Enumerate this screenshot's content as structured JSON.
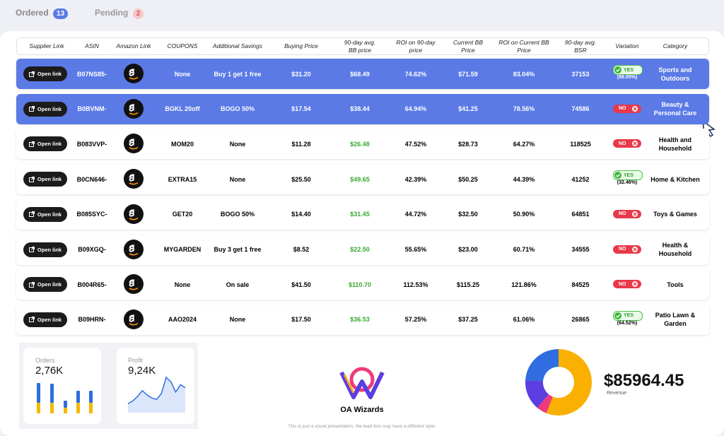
{
  "tabs": [
    {
      "label": "Ordered",
      "count": "13"
    },
    {
      "label": "Pending",
      "count": "2"
    }
  ],
  "table": {
    "link_label": "Open link",
    "headers": [
      "Supplier Link",
      "ASIN",
      "Amazon Link",
      "COUPONS",
      "Additional Savings",
      "Buying Price",
      "90-day avg. BB price",
      "ROI on 90-day price",
      "Current BB Price",
      "ROI on Current BB Price",
      "90-day avg. BSR",
      "Variation",
      "Category"
    ],
    "rows": [
      {
        "highlighted": true,
        "asin": "B07NS85-",
        "coupon": "None",
        "savings": "Buy 1 get 1 free",
        "buying": "$31.20",
        "avg_bb": "$68.49",
        "roi": "74.62%",
        "current_bb": "$71.59",
        "roi_current": "83.04%",
        "bsr": "37153",
        "variation": {
          "positive": true,
          "label": "YES",
          "pct": "(99.05%)"
        },
        "category": "Sports and Outdoors"
      },
      {
        "highlighted": true,
        "asin": "B0BVNM-",
        "coupon": "BGKL 20off",
        "savings": "BOGO 50%",
        "buying": "$17.54",
        "avg_bb": "$38.44",
        "roi": "64.94%",
        "current_bb": "$41.25",
        "roi_current": "78.56%",
        "bsr": "74586",
        "variation": {
          "positive": false,
          "label": "NO"
        },
        "category": "Beauty & Personal Care"
      },
      {
        "highlighted": false,
        "asin": "B083VVP-",
        "coupon": "MOM20",
        "savings": "None",
        "buying": "$11.28",
        "avg_bb": "$26.48",
        "roi": "47.52%",
        "current_bb": "$28.73",
        "roi_current": "64.27%",
        "bsr": "118525",
        "variation": {
          "positive": false,
          "label": "NO"
        },
        "category": "Health and Household"
      },
      {
        "highlighted": false,
        "asin": "B0CN646-",
        "coupon": "EXTRA15",
        "savings": "None",
        "buying": "$25.50",
        "avg_bb": "$49.65",
        "roi": "42.39%",
        "current_bb": "$50.25",
        "roi_current": "44.39%",
        "bsr": "41252",
        "variation": {
          "positive": true,
          "label": "YES",
          "pct": "(32.46%)"
        },
        "category": "Home & Kitchen"
      },
      {
        "highlighted": false,
        "asin": "B085SYC-",
        "coupon": "GET20",
        "savings": "BOGO 50%",
        "buying": "$14.40",
        "avg_bb": "$31.45",
        "roi": "44.72%",
        "current_bb": "$32.50",
        "roi_current": "50.90%",
        "bsr": "64851",
        "variation": {
          "positive": false,
          "label": "NO"
        },
        "category": "Toys & Games"
      },
      {
        "highlighted": false,
        "asin": "B09XGQ-",
        "coupon": "MYGARDEN",
        "savings": "Buy 3 get 1 free",
        "buying": "$8.52",
        "avg_bb": "$22.50",
        "roi": "55.65%",
        "current_bb": "$23.00",
        "roi_current": "60.71%",
        "bsr": "34555",
        "variation": {
          "positive": false,
          "label": "NO"
        },
        "category": "Health & Household"
      },
      {
        "highlighted": false,
        "asin": "B004R65-",
        "coupon": "None",
        "savings": "On sale",
        "buying": "$41.50",
        "avg_bb": "$110.70",
        "roi": "112.53%",
        "current_bb": "$115.25",
        "roi_current": "121.86%",
        "bsr": "84525",
        "variation": {
          "positive": false,
          "label": "NO"
        },
        "category": "Tools"
      },
      {
        "highlighted": false,
        "asin": "B09HRN-",
        "coupon": "AAO2024",
        "savings": "None",
        "buying": "$17.50",
        "avg_bb": "$36.53",
        "roi": "57.25%",
        "current_bb": "$37.25",
        "roi_current": "61.06%",
        "bsr": "26865",
        "variation": {
          "positive": true,
          "label": "YES",
          "pct": "(64.52%)"
        },
        "category": "Patio Lawn & Garden"
      }
    ]
  },
  "orders": {
    "title": "Orders",
    "value": "2,76K",
    "chart": {
      "series": [
        {
          "color": "#f5b800",
          "values": [
            15,
            15,
            8,
            15,
            15
          ]
        },
        {
          "color": "#2f6de0",
          "values": [
            28,
            27,
            10,
            17,
            17
          ]
        }
      ]
    }
  },
  "profit": {
    "title": "Profit",
    "value": "9,24K",
    "chart": {
      "color": "#2f6de0",
      "values": [
        6,
        8,
        11,
        15,
        12,
        10,
        9,
        13,
        24,
        21,
        14,
        19,
        17
      ]
    }
  },
  "brand": "OA Wizards",
  "revenue": {
    "value": "$85964.45",
    "label": "Revenue",
    "chart": {
      "segments": [
        {
          "color": "#f9b000",
          "value": 56
        },
        {
          "color": "#ee3a7a",
          "value": 5
        },
        {
          "color": "#5b3ee0",
          "value": 15
        },
        {
          "color": "#2f6de0",
          "value": 24
        }
      ]
    }
  },
  "footnote": "This is just a visual presentation, the lead lists may have a different style."
}
